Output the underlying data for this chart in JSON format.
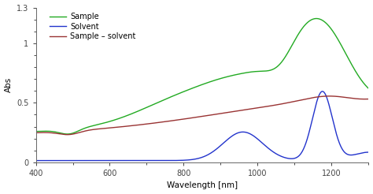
{
  "title": "",
  "xlabel": "Wavelength [nm]",
  "ylabel": "Abs",
  "xlim": [
    400,
    1300
  ],
  "ylim": [
    0,
    1.3
  ],
  "yticks": [
    0,
    0.5,
    1,
    1.3
  ],
  "ytick_labels": [
    "0",
    "0.5",
    "1",
    "1.3"
  ],
  "xticks": [
    400,
    600,
    800,
    1000,
    1200
  ],
  "legend": [
    "Sample",
    "Solvent",
    "Sample – solvent"
  ],
  "colors": {
    "sample": "#22aa22",
    "solvent": "#2233cc",
    "sample_minus_solvent": "#993333"
  },
  "background": "#ffffff",
  "linewidth": 1.0
}
